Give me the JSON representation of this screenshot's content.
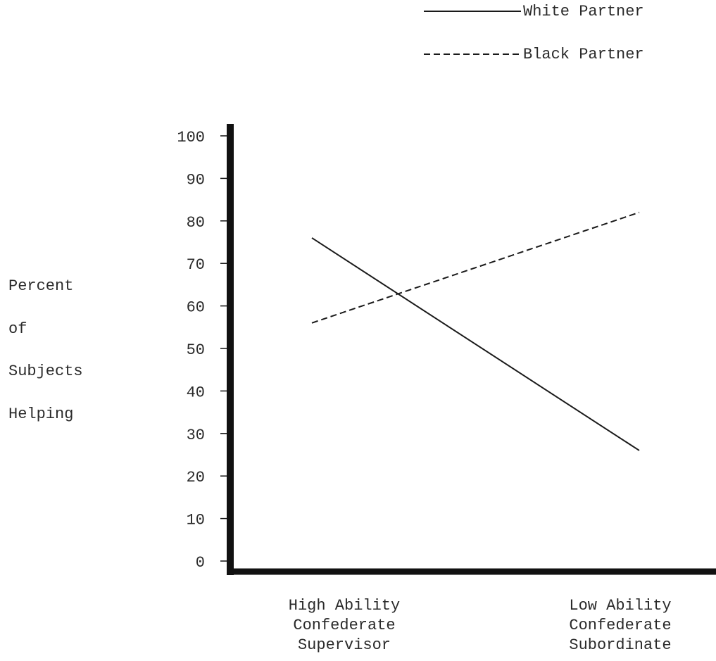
{
  "chart_data": {
    "type": "line",
    "categories": [
      [
        "High Ability",
        "Confederate",
        "Supervisor"
      ],
      [
        "Low Ability",
        "Confederate",
        "Subordinate"
      ]
    ],
    "series": [
      {
        "name": "White Partner",
        "values": [
          76,
          26
        ],
        "line_style": "solid"
      },
      {
        "name": "Black Partner",
        "values": [
          56,
          82
        ],
        "line_style": "dashed"
      }
    ],
    "legend": [
      {
        "sample": "———————",
        "label": "White Partner"
      },
      {
        "sample": "--------",
        "label": "Black Partner"
      }
    ],
    "legend_position": "top-right",
    "ylabel": [
      "Percent",
      "of",
      "Subjects",
      "Helping"
    ],
    "yticks": [
      "0",
      "10",
      "20",
      "30",
      "40",
      "50",
      "60",
      "70",
      "80",
      "90",
      "100"
    ],
    "ylim": [
      0,
      100
    ],
    "grid": false,
    "colors": {
      "ink": "#1a1a1a",
      "axis": "#111111",
      "background": "#ffffff"
    }
  }
}
